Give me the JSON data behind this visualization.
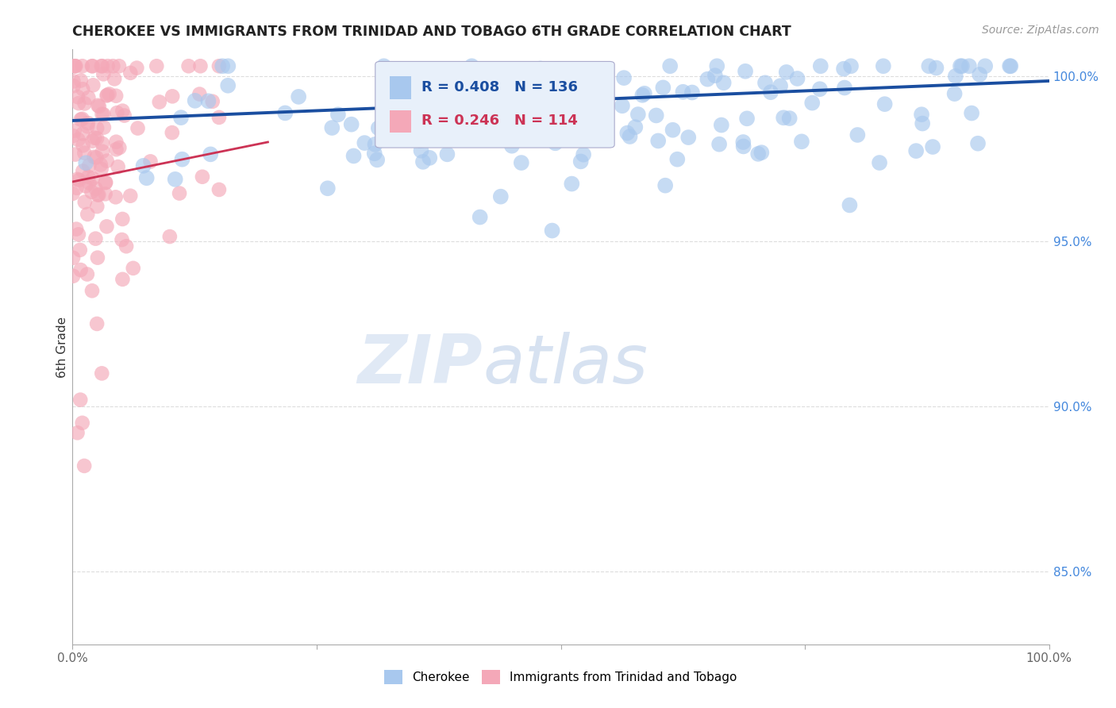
{
  "title": "CHEROKEE VS IMMIGRANTS FROM TRINIDAD AND TOBAGO 6TH GRADE CORRELATION CHART",
  "source": "Source: ZipAtlas.com",
  "ylabel": "6th Grade",
  "xlim": [
    0.0,
    1.0
  ],
  "ylim": [
    0.828,
    1.008
  ],
  "right_yticks": [
    0.85,
    0.9,
    0.95,
    1.0
  ],
  "right_ytick_labels": [
    "85.0%",
    "90.0%",
    "95.0%",
    "100.0%"
  ],
  "blue_color": "#a8c8ee",
  "pink_color": "#f4a8b8",
  "blue_line_color": "#1a4ea0",
  "pink_line_color": "#cc3355",
  "R_blue": 0.408,
  "N_blue": 136,
  "R_pink": 0.246,
  "N_pink": 114,
  "legend_labels": [
    "Cherokee",
    "Immigrants from Trinidad and Tobago"
  ],
  "watermark_zip": "ZIP",
  "watermark_atlas": "atlas",
  "background_color": "#ffffff",
  "title_fontsize": 12.5,
  "source_fontsize": 10,
  "grid_color": "#dddddd",
  "axis_color": "#aaaaaa",
  "tick_label_color": "#666666",
  "right_tick_color": "#4488dd"
}
